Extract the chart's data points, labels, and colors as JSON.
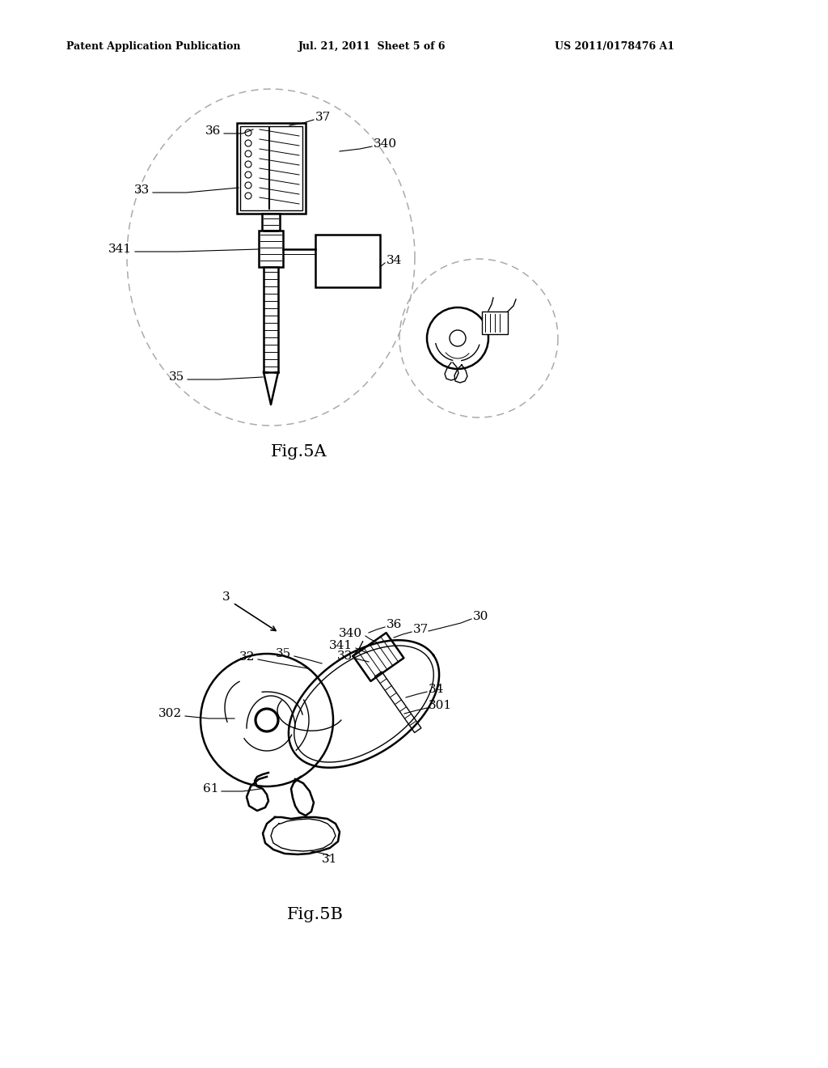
{
  "title_left": "Patent Application Publication",
  "title_center": "Jul. 21, 2011  Sheet 5 of 6",
  "title_right": "US 2011/0178476 A1",
  "fig5a_label": "Fig.5A",
  "fig5b_label": "Fig.5B",
  "background_color": "#ffffff",
  "line_color": "#000000",
  "dashed_color": "#aaaaaa"
}
